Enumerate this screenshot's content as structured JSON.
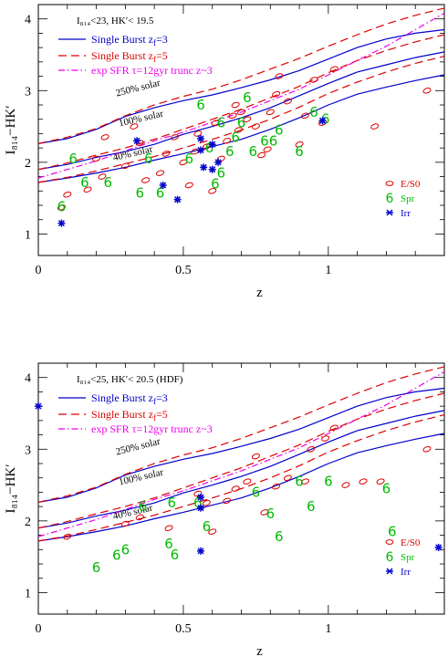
{
  "chart_data": [
    {
      "type": "scatter",
      "title": "I₈₁₄<23, HK′< 19.5",
      "xlabel": "z",
      "ylabel": "I₈₁₄−HK′",
      "xlim": [
        0,
        1.4
      ],
      "ylim": [
        0.7,
        4.2
      ],
      "xticks": [
        0,
        0.5,
        1
      ],
      "yticks": [
        1,
        2,
        3,
        4
      ],
      "legend": [
        "Single Burst z_f=3",
        "Single Burst z_f=5",
        "exp SFR τ=12gyr trunc z~3"
      ],
      "legend_parts": {
        "sb3": {
          "text": "Single Burst z",
          "sub": "f",
          "tail": "=3"
        },
        "sb5": {
          "text": "Single Burst z",
          "sub": "f",
          "tail": "=5"
        },
        "exp": {
          "text": "exp SFR τ=12gyr trunc z~3"
        }
      },
      "annotations": [
        "250% solar",
        "100% solar",
        "40% solar"
      ],
      "point_legend": [
        "E/S0",
        "Spr",
        "Irr"
      ],
      "colors": {
        "sb3": "#0000cc",
        "sb5": "#dd0000",
        "exp": "#ee00ee",
        "es0": "#dd0000",
        "spr": "#00bb00",
        "irr": "#0000cc"
      },
      "series": [
        {
          "name": "E/S0",
          "points": [
            [
              0.08,
              1.37
            ],
            [
              0.1,
              1.55
            ],
            [
              0.17,
              1.62
            ],
            [
              0.2,
              2.05
            ],
            [
              0.22,
              1.8
            ],
            [
              0.23,
              2.35
            ],
            [
              0.3,
              1.95
            ],
            [
              0.33,
              2.5
            ],
            [
              0.35,
              2.27
            ],
            [
              0.37,
              1.75
            ],
            [
              0.42,
              1.85
            ],
            [
              0.44,
              2.12
            ],
            [
              0.47,
              2.35
            ],
            [
              0.5,
              2.0
            ],
            [
              0.52,
              1.68
            ],
            [
              0.54,
              2.15
            ],
            [
              0.55,
              2.4
            ],
            [
              0.58,
              2.22
            ],
            [
              0.6,
              1.6
            ],
            [
              0.61,
              2.55
            ],
            [
              0.63,
              2.05
            ],
            [
              0.65,
              2.3
            ],
            [
              0.67,
              2.65
            ],
            [
              0.68,
              2.8
            ],
            [
              0.69,
              2.45
            ],
            [
              0.7,
              2.7
            ],
            [
              0.72,
              2.6
            ],
            [
              0.75,
              2.5
            ],
            [
              0.77,
              2.1
            ],
            [
              0.79,
              2.18
            ],
            [
              0.8,
              2.7
            ],
            [
              0.82,
              2.95
            ],
            [
              0.83,
              3.2
            ],
            [
              0.86,
              2.85
            ],
            [
              0.9,
              2.25
            ],
            [
              0.92,
              2.65
            ],
            [
              0.95,
              3.15
            ],
            [
              0.98,
              2.55
            ],
            [
              1.02,
              3.3
            ],
            [
              1.16,
              2.5
            ],
            [
              1.34,
              3.0
            ]
          ]
        },
        {
          "name": "Spr",
          "points": [
            [
              0.08,
              1.38
            ],
            [
              0.12,
              2.05
            ],
            [
              0.16,
              1.72
            ],
            [
              0.24,
              1.72
            ],
            [
              0.35,
              1.57
            ],
            [
              0.42,
              1.57
            ],
            [
              0.56,
              2.8
            ],
            [
              0.59,
              2.2
            ],
            [
              0.63,
              2.55
            ],
            [
              0.66,
              2.15
            ],
            [
              0.68,
              2.35
            ],
            [
              0.7,
              2.55
            ],
            [
              0.72,
              2.9
            ],
            [
              0.74,
              2.15
            ],
            [
              0.78,
              2.3
            ],
            [
              0.81,
              2.3
            ],
            [
              0.83,
              2.45
            ],
            [
              0.9,
              2.15
            ],
            [
              0.95,
              2.7
            ],
            [
              0.99,
              2.6
            ],
            [
              0.63,
              1.85
            ],
            [
              0.61,
              1.7
            ],
            [
              0.52,
              2.05
            ],
            [
              0.38,
              2.05
            ]
          ]
        },
        {
          "name": "Irr",
          "points": [
            [
              0.08,
              1.15
            ],
            [
              0.34,
              2.3
            ],
            [
              0.43,
              1.68
            ],
            [
              0.48,
              1.48
            ],
            [
              0.56,
              2.33
            ],
            [
              0.56,
              2.17
            ],
            [
              0.57,
              1.93
            ],
            [
              0.6,
              1.9
            ],
            [
              0.6,
              2.25
            ],
            [
              0.62,
              2.0
            ],
            [
              0.98,
              2.58
            ]
          ]
        }
      ],
      "curves": [
        {
          "name": "sb3 250%",
          "x": [
            0,
            0.1,
            0.2,
            0.3,
            0.4,
            0.5,
            0.6,
            0.7,
            0.8,
            0.9,
            1.0,
            1.1,
            1.2,
            1.3,
            1.4
          ],
          "y": [
            2.26,
            2.33,
            2.46,
            2.64,
            2.76,
            2.86,
            2.94,
            3.04,
            3.15,
            3.28,
            3.44,
            3.6,
            3.72,
            3.8,
            3.85
          ]
        },
        {
          "name": "sb3 100%",
          "x": [
            0,
            0.1,
            0.2,
            0.3,
            0.4,
            0.5,
            0.6,
            0.7,
            0.8,
            0.9,
            1.0,
            1.1,
            1.2,
            1.3,
            1.4
          ],
          "y": [
            1.9,
            1.97,
            2.07,
            2.15,
            2.25,
            2.39,
            2.5,
            2.62,
            2.76,
            2.93,
            3.1,
            3.26,
            3.36,
            3.46,
            3.54
          ]
        },
        {
          "name": "sb3 40%",
          "x": [
            0,
            0.1,
            0.2,
            0.3,
            0.4,
            0.5,
            0.6,
            0.7,
            0.8,
            0.9,
            1.0,
            1.1,
            1.2,
            1.3,
            1.4
          ],
          "y": [
            1.72,
            1.78,
            1.85,
            1.93,
            2.03,
            2.12,
            2.22,
            2.32,
            2.46,
            2.62,
            2.8,
            2.95,
            3.05,
            3.14,
            3.22
          ]
        },
        {
          "name": "sb5 250%",
          "x": [
            0,
            0.1,
            0.2,
            0.3,
            0.4,
            0.5,
            0.6,
            0.7,
            0.8,
            0.9,
            1.0,
            1.1,
            1.2,
            1.3,
            1.4
          ],
          "y": [
            2.26,
            2.35,
            2.47,
            2.65,
            2.8,
            2.92,
            3.02,
            3.15,
            3.3,
            3.45,
            3.62,
            3.78,
            3.93,
            4.05,
            4.15
          ]
        },
        {
          "name": "sb5 100%",
          "x": [
            0,
            0.1,
            0.2,
            0.3,
            0.4,
            0.5,
            0.6,
            0.7,
            0.8,
            0.9,
            1.0,
            1.1,
            1.2,
            1.3,
            1.4
          ],
          "y": [
            1.9,
            1.99,
            2.1,
            2.2,
            2.32,
            2.46,
            2.6,
            2.74,
            2.9,
            3.06,
            3.25,
            3.42,
            3.56,
            3.68,
            3.78
          ]
        },
        {
          "name": "sb5 40%",
          "x": [
            0,
            0.1,
            0.2,
            0.3,
            0.4,
            0.5,
            0.6,
            0.7,
            0.8,
            0.9,
            1.0,
            1.1,
            1.2,
            1.3,
            1.4
          ],
          "y": [
            1.72,
            1.79,
            1.88,
            1.98,
            2.08,
            2.2,
            2.32,
            2.45,
            2.6,
            2.77,
            2.96,
            3.12,
            3.26,
            3.38,
            3.48
          ]
        },
        {
          "name": "exp",
          "x": [
            0,
            0.1,
            0.2,
            0.3,
            0.4,
            0.5,
            0.6,
            0.7,
            0.8,
            0.9,
            1.0,
            1.1,
            1.2,
            1.3,
            1.4
          ],
          "y": [
            1.78,
            1.9,
            2.02,
            2.16,
            2.3,
            2.42,
            2.56,
            2.7,
            2.86,
            3.02,
            3.22,
            3.42,
            3.62,
            3.85,
            4.08
          ]
        }
      ]
    },
    {
      "type": "scatter",
      "title": "I₈₁₄<25, HK′< 20.5 (HDF)",
      "xlabel": "z",
      "ylabel": "I₈₁₄−HK′",
      "xlim": [
        0,
        1.4
      ],
      "ylim": [
        0.7,
        4.2
      ],
      "xticks": [
        0,
        0.5,
        1
      ],
      "yticks": [
        1,
        2,
        3,
        4
      ],
      "legend": [
        "Single Burst z_f=3",
        "Single Burst z_f=5",
        "exp SFR τ=12gyr trunc z~3"
      ],
      "annotations": [
        "250% solar",
        "100% solar",
        "40% solar"
      ],
      "point_legend": [
        "E/S0",
        "Spr",
        "Irr"
      ],
      "series": [
        {
          "name": "E/S0",
          "points": [
            [
              0.1,
              1.78
            ],
            [
              0.3,
              1.96
            ],
            [
              0.35,
              2.05
            ],
            [
              0.45,
              1.9
            ],
            [
              0.55,
              2.38
            ],
            [
              0.58,
              2.25
            ],
            [
              0.6,
              1.85
            ],
            [
              0.65,
              2.28
            ],
            [
              0.68,
              2.45
            ],
            [
              0.72,
              2.55
            ],
            [
              0.75,
              2.9
            ],
            [
              0.78,
              2.12
            ],
            [
              0.82,
              2.48
            ],
            [
              0.86,
              2.6
            ],
            [
              0.92,
              2.55
            ],
            [
              0.94,
              3.0
            ],
            [
              0.99,
              3.15
            ],
            [
              1.02,
              3.3
            ],
            [
              1.06,
              2.5
            ],
            [
              1.12,
              2.55
            ],
            [
              1.18,
              2.55
            ],
            [
              1.34,
              3.0
            ]
          ]
        },
        {
          "name": "Spr",
          "points": [
            [
              0.2,
              1.35
            ],
            [
              0.27,
              1.52
            ],
            [
              0.3,
              1.6
            ],
            [
              0.36,
              2.2
            ],
            [
              0.45,
              1.68
            ],
            [
              0.46,
              2.25
            ],
            [
              0.47,
              1.53
            ],
            [
              0.55,
              2.25
            ],
            [
              0.58,
              1.92
            ],
            [
              0.75,
              2.4
            ],
            [
              0.8,
              2.1
            ],
            [
              0.83,
              1.78
            ],
            [
              0.9,
              2.55
            ],
            [
              0.94,
              2.2
            ],
            [
              1.0,
              2.55
            ],
            [
              1.2,
              2.45
            ],
            [
              1.22,
              1.85
            ]
          ]
        },
        {
          "name": "Irr",
          "points": [
            [
              0.0,
              3.6
            ],
            [
              0.56,
              2.33
            ],
            [
              0.56,
              2.18
            ],
            [
              0.56,
              1.58
            ],
            [
              1.38,
              1.63
            ]
          ]
        }
      ]
    }
  ]
}
